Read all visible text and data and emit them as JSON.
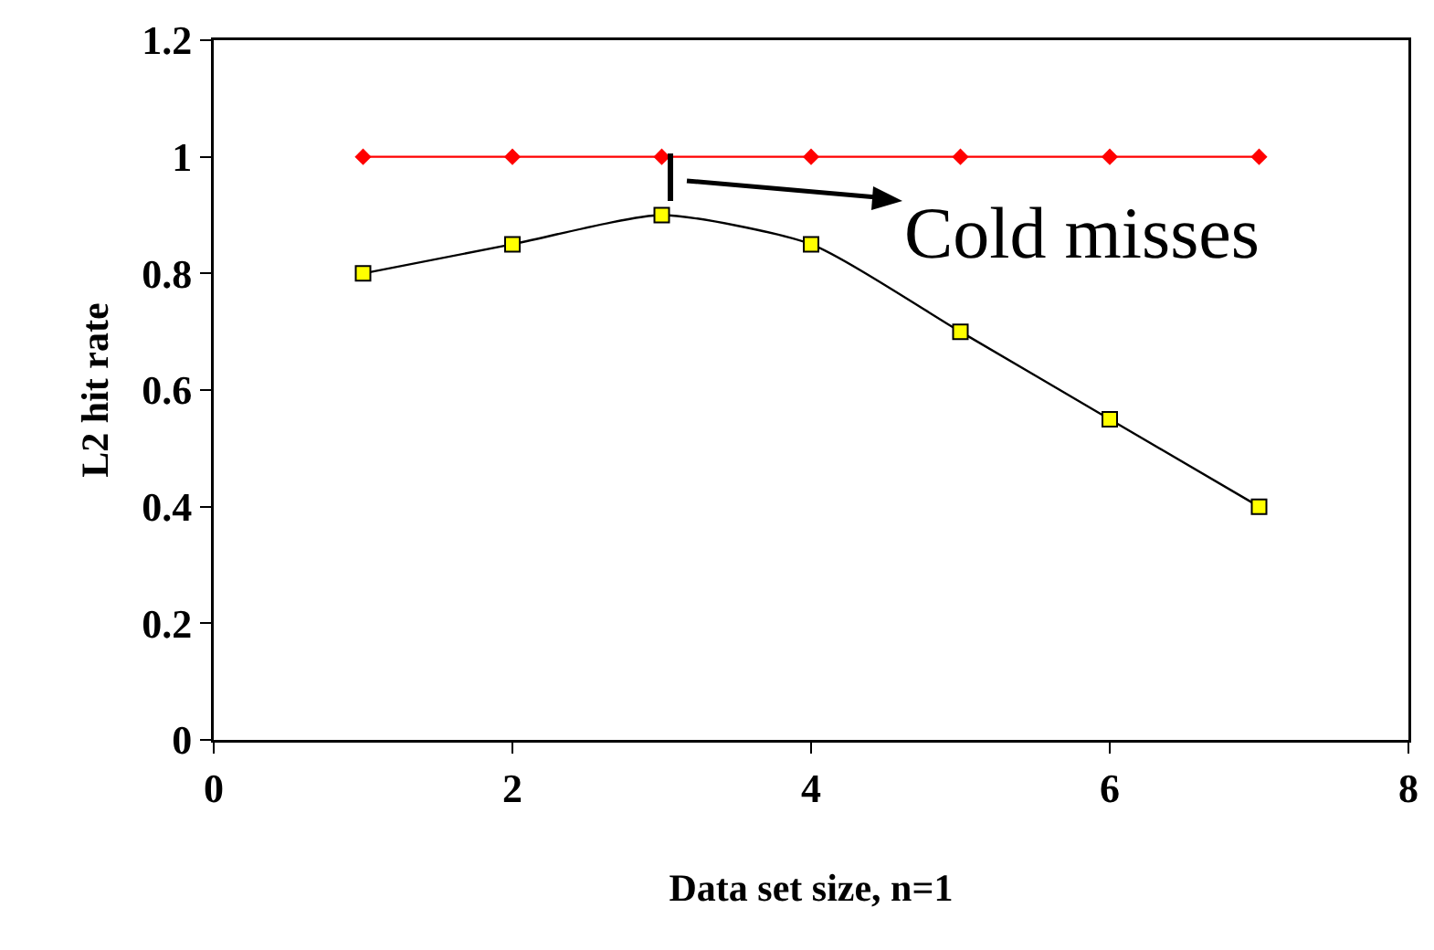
{
  "chart_data": {
    "type": "line",
    "xlabel": "Data set size, n=1",
    "ylabel": "L2 hit rate",
    "x": [
      1,
      2,
      3,
      4,
      5,
      6,
      7
    ],
    "series": [
      {
        "color": "#ff0000",
        "marker": "diamond",
        "values": [
          1,
          1,
          1,
          1,
          1,
          1,
          1
        ]
      },
      {
        "color": "#000000",
        "marker": "square",
        "values": [
          0.8,
          0.85,
          0.9,
          0.85,
          0.7,
          0.55,
          0.4
        ]
      }
    ],
    "xlim": [
      0,
      8
    ],
    "xticks": [
      0,
      2,
      4,
      6,
      8
    ],
    "ylim": [
      0,
      1.2
    ],
    "yticks": [
      0,
      0.2,
      0.4,
      0.6,
      0.8,
      1,
      1.2
    ],
    "grid": false,
    "annotations": [
      "Cold misses"
    ]
  }
}
